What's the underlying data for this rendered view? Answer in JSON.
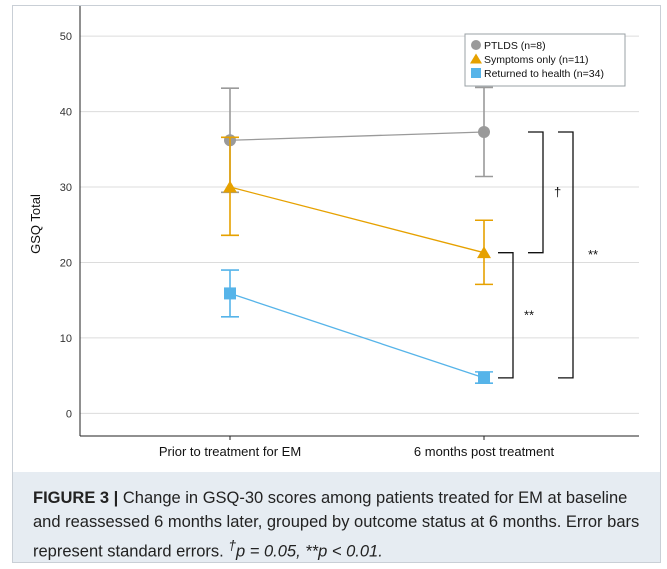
{
  "chart_data": {
    "type": "line",
    "ylabel": "GSQ Total",
    "xlabel": "",
    "ylim": [
      -3,
      54
    ],
    "yticks": [
      0,
      10,
      20,
      30,
      40,
      50
    ],
    "categories": [
      "Prior to treatment for EM",
      "6 months post treatment"
    ],
    "grid": "horizontal",
    "legend_position": "top-right",
    "series": [
      {
        "name": "PTLDS (n=8)",
        "marker": "circle",
        "color": "#9a9a9a",
        "values": [
          36.2,
          37.3
        ],
        "upper": [
          43.1,
          43.2
        ],
        "lower": [
          29.3,
          31.4
        ]
      },
      {
        "name": "Symptoms only (n=11)",
        "marker": "triangle",
        "color": "#e6a100",
        "values": [
          30.0,
          21.3
        ],
        "upper": [
          36.6,
          25.6
        ],
        "lower": [
          23.6,
          17.1
        ]
      },
      {
        "name": "Returned to health (n=34)",
        "marker": "square",
        "color": "#56b4e9",
        "values": [
          15.9,
          4.7
        ],
        "upper": [
          19.0,
          5.5
        ],
        "lower": [
          12.8,
          4.0
        ]
      }
    ],
    "annotations": [
      {
        "label": "†",
        "from_value": 37.3,
        "to_value": 21.3
      },
      {
        "label": "**",
        "from_value": 21.3,
        "to_value": 4.7
      },
      {
        "label": "**",
        "from_value": 37.3,
        "to_value": 4.7
      }
    ]
  },
  "caption": {
    "label": "FIGURE 3 |",
    "text": " Change in GSQ-30 scores among patients treated for EM at baseline and reassessed 6 months later, grouped by outcome status at 6 months. Error bars represent standard errors. ",
    "dagger": "†",
    "p_dagger": "p = 0.05, **p < 0.01."
  }
}
